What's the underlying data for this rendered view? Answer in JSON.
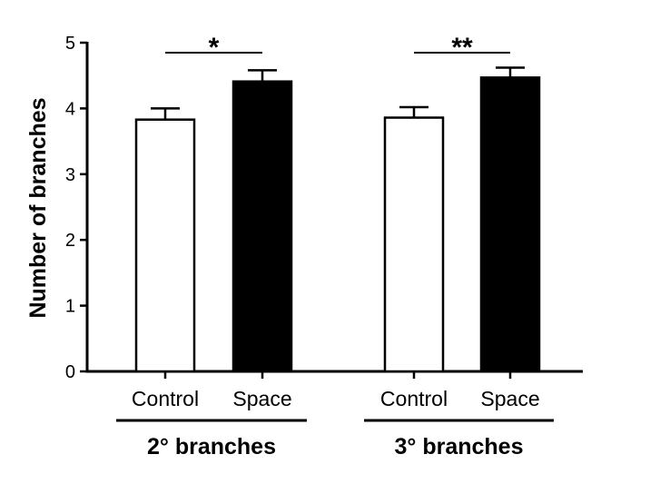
{
  "chart_data": {
    "type": "bar",
    "ylabel": "Number of branches",
    "ylim": [
      0,
      5
    ],
    "yticks": [
      "0",
      "1",
      "2",
      "3",
      "4",
      "5"
    ],
    "grid": false,
    "legend": "none",
    "groups": [
      {
        "label": "2° branches",
        "significance": "*",
        "bars": [
          {
            "category": "Control",
            "value": 3.83,
            "error": 0.17,
            "fill": "#ffffff"
          },
          {
            "category": "Space",
            "value": 4.41,
            "error": 0.17,
            "fill": "#000000"
          }
        ]
      },
      {
        "label": "3° branches",
        "significance": "**",
        "bars": [
          {
            "category": "Control",
            "value": 3.86,
            "error": 0.16,
            "fill": "#ffffff"
          },
          {
            "category": "Space",
            "value": 4.47,
            "error": 0.15,
            "fill": "#000000"
          }
        ]
      }
    ]
  }
}
